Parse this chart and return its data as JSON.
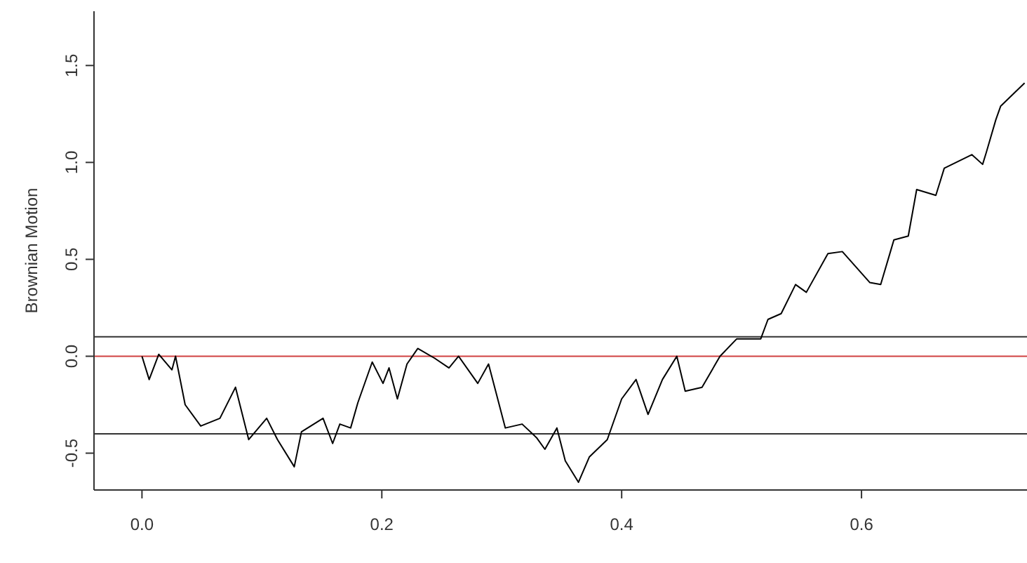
{
  "chart_data": {
    "type": "line",
    "ylabel": "Brownian Motion",
    "x": [
      0,
      0.006,
      0.014,
      0.025,
      0.028,
      0.036,
      0.049,
      0.065,
      0.078,
      0.089,
      0.104,
      0.113,
      0.127,
      0.133,
      0.151,
      0.159,
      0.165,
      0.174,
      0.18,
      0.192,
      0.201,
      0.206,
      0.213,
      0.221,
      0.23,
      0.244,
      0.256,
      0.264,
      0.28,
      0.289,
      0.303,
      0.317,
      0.329,
      0.336,
      0.346,
      0.353,
      0.364,
      0.373,
      0.388,
      0.4,
      0.412,
      0.422,
      0.434,
      0.446,
      0.453,
      0.467,
      0.482,
      0.496,
      0.516,
      0.522,
      0.533,
      0.545,
      0.554,
      0.572,
      0.584,
      0.607,
      0.616,
      0.627,
      0.639,
      0.646,
      0.662,
      0.669,
      0.692,
      0.701,
      0.704,
      0.712,
      0.716,
      0.736
    ],
    "series": [
      {
        "color": "#000000",
        "values": [
          0,
          -0.12,
          0.01,
          -0.07,
          0,
          -0.25,
          -0.36,
          -0.32,
          -0.16,
          -0.43,
          -0.32,
          -0.43,
          -0.57,
          -0.39,
          -0.32,
          -0.45,
          -0.35,
          -0.37,
          -0.24,
          -0.03,
          -0.14,
          -0.06,
          -0.22,
          -0.04,
          0.04,
          -0.01,
          -0.06,
          0,
          -0.14,
          -0.04,
          -0.37,
          -0.35,
          -0.42,
          -0.48,
          -0.37,
          -0.54,
          -0.65,
          -0.52,
          -0.43,
          -0.22,
          -0.12,
          -0.3,
          -0.12,
          0,
          -0.18,
          -0.16,
          0,
          0.09,
          0.09,
          0.19,
          0.22,
          0.37,
          0.33,
          0.53,
          0.54,
          0.38,
          0.37,
          0.6,
          0.62,
          0.86,
          0.83,
          0.97,
          1.04,
          0.99,
          1.05,
          1.22,
          1.29,
          1.41
        ]
      }
    ],
    "xlim": [
      -0.04,
      0.738
    ],
    "xticks": [
      {
        "value": 0,
        "label": "0.0"
      },
      0.2,
      0.4,
      0.6
    ],
    "ylim": [
      -0.69,
      1.78
    ],
    "yticks": [
      {
        "value": -0.5,
        "label": "-0.5"
      },
      {
        "value": 0,
        "label": "0.0"
      },
      0.5,
      {
        "value": 1,
        "label": "1.0"
      },
      1.5
    ],
    "ref_lines": [
      {
        "axis": "y",
        "value": 0.1,
        "color": "#333333"
      },
      {
        "axis": "y",
        "value": 0,
        "color": "#d04040"
      },
      {
        "axis": "y",
        "value": -0.4,
        "color": "#333333"
      }
    ],
    "line_style": "solid",
    "marker": "none"
  }
}
